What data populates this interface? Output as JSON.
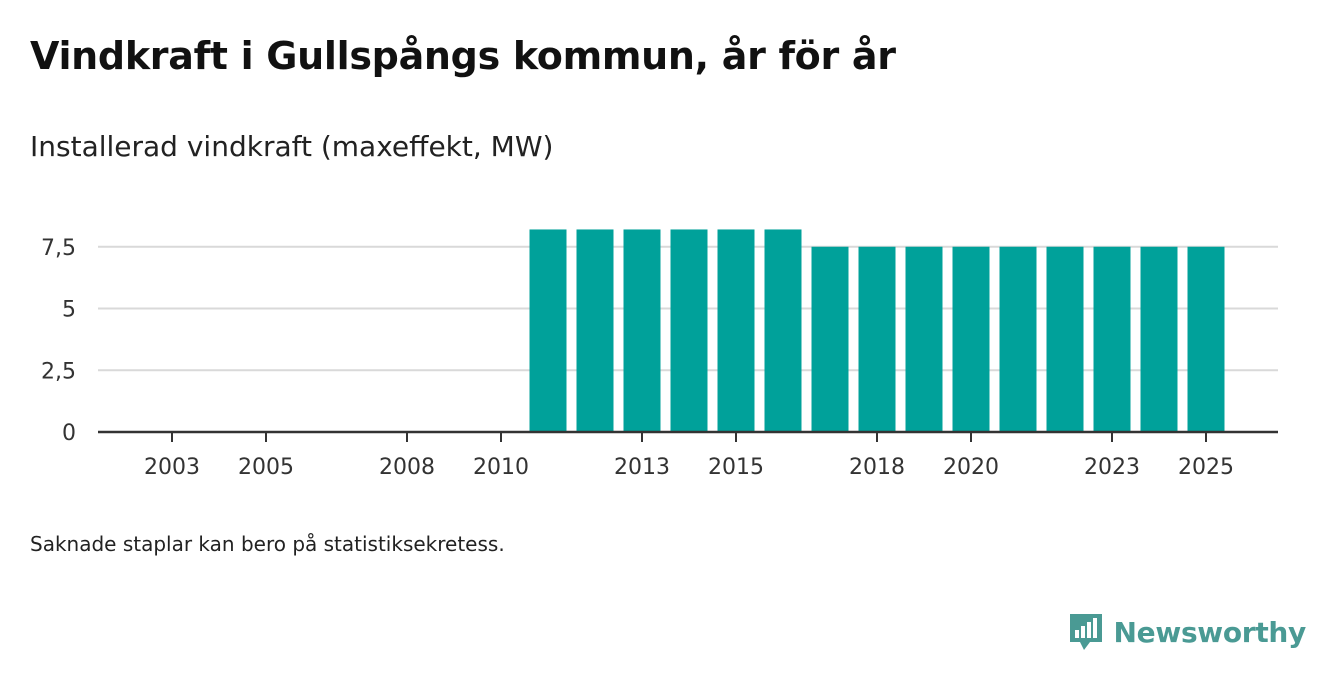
{
  "header": {
    "title": "Vindkraft i Gullspångs kommun, år för år",
    "subtitle": "Installerad vindkraft (maxeffekt, MW)"
  },
  "footer": {
    "note": "Saknade staplar kan bero på statistiksekretess.",
    "brand": "Newsworthy"
  },
  "colors": {
    "bar": "#00a19a",
    "grid": "#d9d9d9",
    "axis": "#333333",
    "brand": "#4a9a94"
  },
  "chart_data": {
    "type": "bar",
    "title": "Vindkraft i Gullspångs kommun, år för år",
    "ylabel": "Installerad vindkraft (maxeffekt, MW)",
    "xlabel": "",
    "categories": [
      "2003",
      "2004",
      "2005",
      "2006",
      "2007",
      "2008",
      "2009",
      "2010",
      "2011",
      "2012",
      "2013",
      "2014",
      "2015",
      "2016",
      "2017",
      "2018",
      "2019",
      "2020",
      "2021",
      "2022",
      "2023",
      "2024",
      "2025"
    ],
    "values": [
      0,
      0,
      0,
      0,
      0,
      0,
      0,
      0,
      8.2,
      8.2,
      8.2,
      8.2,
      8.2,
      8.2,
      7.5,
      7.5,
      7.5,
      7.5,
      7.5,
      7.5,
      7.5,
      7.5,
      7.5
    ],
    "x_tick_labels": [
      "2003",
      "2005",
      "2008",
      "2010",
      "2013",
      "2015",
      "2018",
      "2020",
      "2023",
      "2025"
    ],
    "y_ticks": [
      0,
      2.5,
      5,
      7.5
    ],
    "y_tick_labels": [
      "0",
      "2,5",
      "5",
      "7,5"
    ],
    "ylim": [
      0,
      8.5
    ],
    "grid": true,
    "legend": "none"
  }
}
